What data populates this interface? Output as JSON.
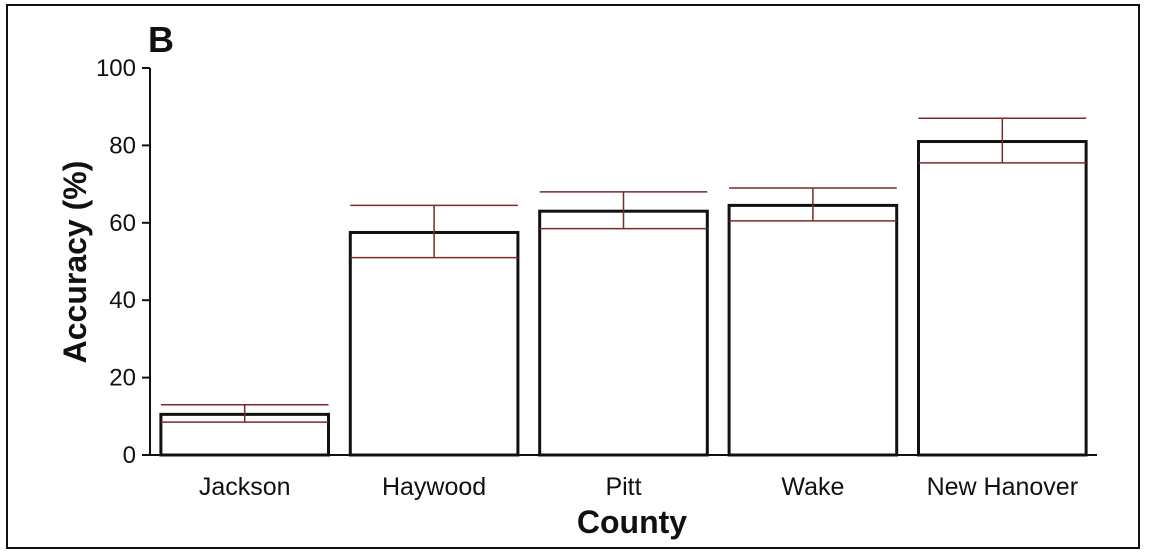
{
  "panel_label": "B",
  "chart_data": {
    "type": "bar",
    "title": "",
    "xlabel": "County",
    "ylabel": "Accuracy (%)",
    "ylim": [
      0,
      100
    ],
    "yticks": [
      "0",
      "20",
      "40",
      "60",
      "80",
      "100"
    ],
    "categories": [
      "Jackson",
      "Haywood",
      "Pitt",
      "Wake",
      "New Hanover"
    ],
    "values": [
      10.5,
      57.5,
      63,
      64.5,
      81
    ],
    "error_upper": [
      13,
      64.5,
      68,
      69,
      87
    ],
    "error_lower": [
      8.5,
      51,
      58.5,
      60.5,
      75.5
    ],
    "grid": false,
    "colors": {
      "bar_fill": "#ffffff",
      "bar_stroke": "#111111",
      "error_bar": "#7a2a2a"
    }
  }
}
